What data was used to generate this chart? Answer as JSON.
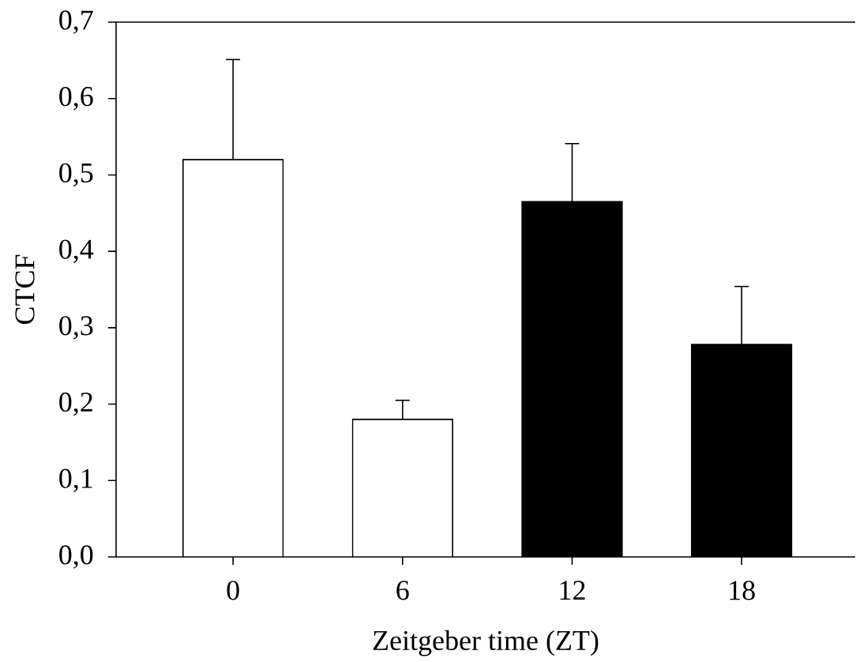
{
  "chart_data": {
    "type": "bar",
    "xlabel": "Zeitgeber time (ZT)",
    "ylabel": "CTCF",
    "categories": [
      "0",
      "6",
      "12",
      "18"
    ],
    "values": [
      0.52,
      0.18,
      0.465,
      0.278
    ],
    "colors": [
      "#ffffff",
      "#ffffff",
      "#000000",
      "#000000"
    ],
    "errors": [
      [
        0.52,
        0.651
      ],
      [
        0.18,
        0.205
      ],
      [
        0.465,
        0.541
      ],
      [
        0.278,
        0.354
      ]
    ],
    "ylim": [
      0,
      0.7
    ],
    "yticks": [
      {
        "value": 0,
        "label": "0,0"
      },
      {
        "value": 0.1,
        "label": "0,1"
      },
      {
        "value": 0.2,
        "label": "0,2"
      },
      {
        "value": 0.3,
        "label": "0,3"
      },
      {
        "value": 0.4,
        "label": "0,4"
      },
      {
        "value": 0.5,
        "label": "0,5"
      },
      {
        "value": 0.6,
        "label": "0,6"
      },
      {
        "value": 0.7,
        "label": "0,7"
      }
    ]
  }
}
